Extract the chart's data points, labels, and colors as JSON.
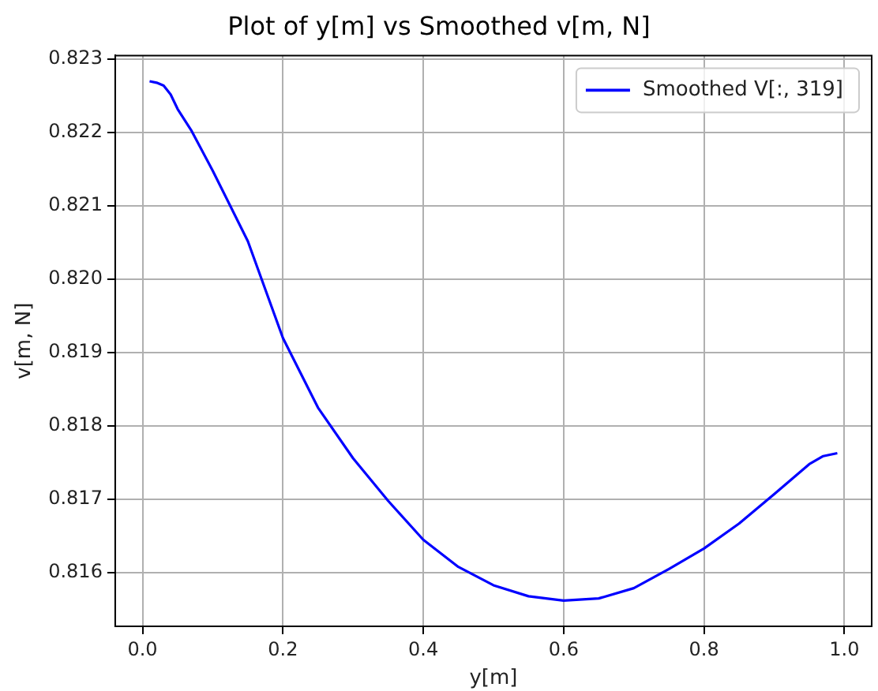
{
  "chart_data": {
    "type": "line",
    "title": "Plot of y[m] vs Smoothed v[m, N]",
    "xlabel": "y[m]",
    "ylabel": "v[m, N]",
    "series": [
      {
        "name": "Smoothed V[:, 319]",
        "color": "#0000ff",
        "x": [
          0.01,
          0.02,
          0.03,
          0.04,
          0.05,
          0.07,
          0.1,
          0.15,
          0.2,
          0.25,
          0.3,
          0.35,
          0.4,
          0.45,
          0.5,
          0.55,
          0.6,
          0.65,
          0.7,
          0.75,
          0.8,
          0.85,
          0.9,
          0.95,
          0.97,
          0.99
        ],
        "values": [
          0.8227,
          0.82268,
          0.82264,
          0.82252,
          0.82232,
          0.82202,
          0.82148,
          0.82052,
          0.8192,
          0.81825,
          0.81756,
          0.81698,
          0.81645,
          0.81608,
          0.81583,
          0.81568,
          0.81562,
          0.81565,
          0.81579,
          0.81605,
          0.81633,
          0.81667,
          0.81707,
          0.81748,
          0.81759,
          0.81763
        ]
      }
    ],
    "xlim": [
      -0.039,
      1.039
    ],
    "xticks": [
      {
        "value": 0,
        "label": "0.0"
      },
      0.2,
      0.4,
      0.6,
      0.8,
      {
        "value": 1,
        "label": "1.0"
      }
    ],
    "ylim": [
      0.81527,
      0.82305
    ],
    "yticks": [
      {
        "value": 0.816,
        "label": "0.816"
      },
      {
        "value": 0.817,
        "label": "0.817"
      },
      {
        "value": 0.818,
        "label": "0.818"
      },
      {
        "value": 0.819,
        "label": "0.819"
      },
      {
        "value": 0.82,
        "label": "0.820"
      },
      {
        "value": 0.821,
        "label": "0.821"
      },
      {
        "value": 0.822,
        "label": "0.822"
      },
      {
        "value": 0.823,
        "label": "0.823"
      }
    ],
    "grid": true,
    "legend": "top right",
    "marker": "none",
    "line_style": "solid"
  }
}
